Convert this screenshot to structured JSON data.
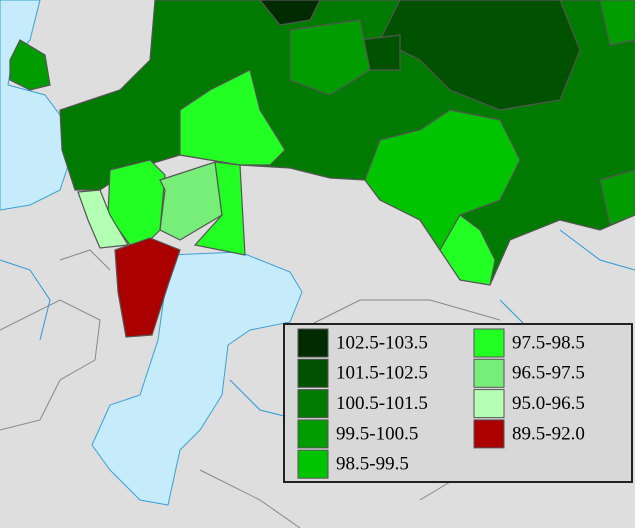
{
  "legend": {
    "items": [
      {
        "label": "102.5-103.5",
        "color": "#002a00"
      },
      {
        "label": "101.5-102.5",
        "color": "#005200"
      },
      {
        "label": "100.5-101.5",
        "color": "#007a00"
      },
      {
        "label": "99.5-100.5",
        "color": "#009c00"
      },
      {
        "label": "98.5-99.5",
        "color": "#00c400"
      },
      {
        "label": "97.5-98.5",
        "color": "#22ff22"
      },
      {
        "label": "96.5-97.5",
        "color": "#77ee77"
      },
      {
        "label": "95.0-96.5",
        "color": "#b3ffb3"
      },
      {
        "label": "89.5-92.0",
        "color": "#aa0000"
      }
    ]
  }
}
